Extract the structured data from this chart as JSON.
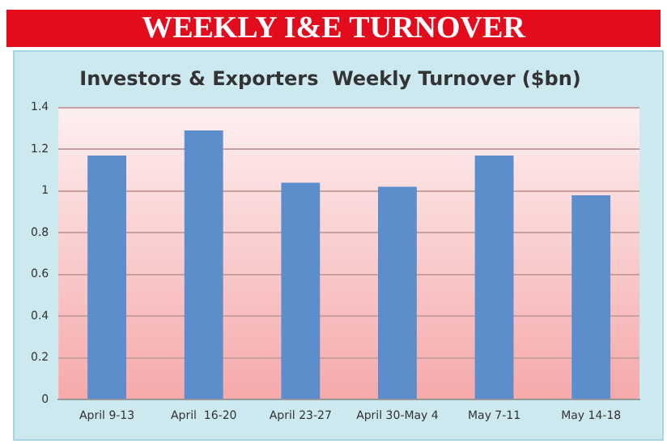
{
  "chart_data": {
    "type": "bar",
    "title": "WEEKLY I&E TURNOVER",
    "subtitle": "Investors & Exporters  Weekly Turnover ($bn)",
    "categories": [
      "April 9-13",
      "April  16-20",
      "April 23-27",
      "April 30-May 4",
      "May 7-11",
      "May 14-18"
    ],
    "values": [
      1.17,
      1.29,
      1.04,
      1.02,
      1.17,
      0.98
    ],
    "color": "#5b8ecb",
    "ylim": [
      0,
      1.4
    ],
    "yticks": [
      0,
      0.2,
      0.4,
      0.6,
      0.8,
      1,
      1.2,
      1.4
    ],
    "grid": "y",
    "legend": false
  }
}
